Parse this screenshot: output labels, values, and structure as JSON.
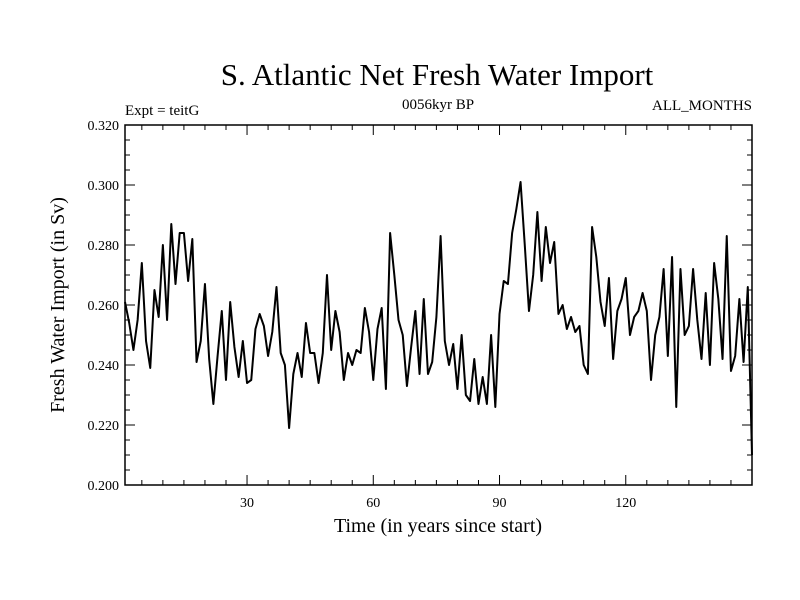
{
  "chart_data": {
    "type": "line",
    "title": "S. Atlantic Net Fresh Water Import",
    "subtitle_left": "Expt = teitG",
    "subtitle_center": "0056kyr BP",
    "subtitle_right": "ALL_MONTHS",
    "xlabel": "Time (in years since start)",
    "ylabel": "Fresh Water Import (in Sv)",
    "xlim": [
      1,
      150
    ],
    "ylim": [
      0.2,
      0.32
    ],
    "xticks": [
      30,
      60,
      90,
      120
    ],
    "xtick_labels": [
      "30",
      "60",
      "90",
      "120"
    ],
    "yticks": [
      0.2,
      0.22,
      0.24,
      0.26,
      0.28,
      0.3,
      0.32
    ],
    "ytick_labels": [
      "0.200",
      "0.220",
      "0.240",
      "0.260",
      "0.280",
      "0.300",
      "0.320"
    ],
    "series": [
      {
        "name": "Fresh Water Import",
        "x": [
          1,
          2,
          3,
          4,
          5,
          6,
          7,
          8,
          9,
          10,
          11,
          12,
          13,
          14,
          15,
          16,
          17,
          18,
          19,
          20,
          21,
          22,
          23,
          24,
          25,
          26,
          27,
          28,
          29,
          30,
          31,
          32,
          33,
          34,
          35,
          36,
          37,
          38,
          39,
          40,
          41,
          42,
          43,
          44,
          45,
          46,
          47,
          48,
          49,
          50,
          51,
          52,
          53,
          54,
          55,
          56,
          57,
          58,
          59,
          60,
          61,
          62,
          63,
          64,
          65,
          66,
          67,
          68,
          69,
          70,
          71,
          72,
          73,
          74,
          75,
          76,
          77,
          78,
          79,
          80,
          81,
          82,
          83,
          84,
          85,
          86,
          87,
          88,
          89,
          90,
          91,
          92,
          93,
          94,
          95,
          96,
          97,
          98,
          99,
          100,
          101,
          102,
          103,
          104,
          105,
          106,
          107,
          108,
          109,
          110,
          111,
          112,
          113,
          114,
          115,
          116,
          117,
          118,
          119,
          120,
          121,
          122,
          123,
          124,
          125,
          126,
          127,
          128,
          129,
          130,
          131,
          132,
          133,
          134,
          135,
          136,
          137,
          138,
          139,
          140,
          141,
          142,
          143,
          144,
          145,
          146,
          147,
          148,
          149,
          150
        ],
        "values": [
          0.261,
          0.254,
          0.245,
          0.255,
          0.274,
          0.248,
          0.239,
          0.265,
          0.256,
          0.28,
          0.255,
          0.287,
          0.267,
          0.284,
          0.284,
          0.268,
          0.282,
          0.241,
          0.248,
          0.267,
          0.242,
          0.227,
          0.243,
          0.258,
          0.235,
          0.261,
          0.246,
          0.236,
          0.248,
          0.234,
          0.235,
          0.252,
          0.257,
          0.253,
          0.243,
          0.251,
          0.266,
          0.244,
          0.24,
          0.219,
          0.237,
          0.244,
          0.236,
          0.254,
          0.244,
          0.244,
          0.234,
          0.244,
          0.27,
          0.245,
          0.258,
          0.251,
          0.235,
          0.244,
          0.24,
          0.245,
          0.244,
          0.259,
          0.251,
          0.235,
          0.252,
          0.259,
          0.232,
          0.284,
          0.27,
          0.255,
          0.25,
          0.233,
          0.246,
          0.258,
          0.237,
          0.262,
          0.237,
          0.241,
          0.256,
          0.283,
          0.248,
          0.24,
          0.247,
          0.232,
          0.25,
          0.23,
          0.228,
          0.242,
          0.227,
          0.236,
          0.227,
          0.25,
          0.226,
          0.257,
          0.268,
          0.267,
          0.284,
          0.292,
          0.301,
          0.28,
          0.258,
          0.27,
          0.291,
          0.268,
          0.286,
          0.274,
          0.281,
          0.257,
          0.26,
          0.252,
          0.256,
          0.251,
          0.253,
          0.24,
          0.237,
          0.286,
          0.276,
          0.261,
          0.253,
          0.269,
          0.242,
          0.258,
          0.262,
          0.269,
          0.25,
          0.256,
          0.258,
          0.264,
          0.258,
          0.235,
          0.25,
          0.256,
          0.272,
          0.243,
          0.276,
          0.226,
          0.272,
          0.25,
          0.253,
          0.272,
          0.255,
          0.242,
          0.264,
          0.24,
          0.274,
          0.262,
          0.242,
          0.283,
          0.238,
          0.243,
          0.262,
          0.241,
          0.266,
          0.21
        ]
      }
    ]
  }
}
